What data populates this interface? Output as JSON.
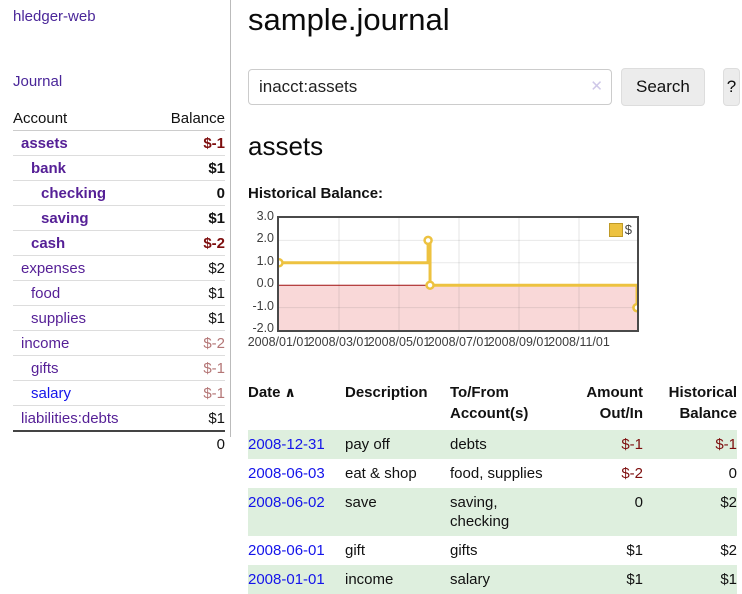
{
  "app": {
    "title": "hledger-web"
  },
  "sidebar": {
    "journal_link": "Journal",
    "header": {
      "account": "Account",
      "balance": "Balance"
    },
    "accounts": [
      {
        "name": "assets",
        "balance": "$-1",
        "indent": 0,
        "bold": true,
        "bal_style": "neg-strong"
      },
      {
        "name": "bank",
        "balance": "$1",
        "indent": 1,
        "bold": true,
        "bal_style": "pos"
      },
      {
        "name": "checking",
        "balance": "0",
        "indent": 2,
        "bold": true,
        "bal_style": "pos"
      },
      {
        "name": "saving",
        "balance": "$1",
        "indent": 2,
        "bold": true,
        "bal_style": "pos"
      },
      {
        "name": "cash",
        "balance": "$-2",
        "indent": 1,
        "bold": true,
        "bal_style": "neg-strong"
      },
      {
        "name": "expenses",
        "balance": "$2",
        "indent": 0,
        "bold": false,
        "bal_style": "pos"
      },
      {
        "name": "food",
        "balance": "$1",
        "indent": 1,
        "bold": false,
        "bal_style": "pos"
      },
      {
        "name": "supplies",
        "balance": "$1",
        "indent": 1,
        "bold": false,
        "bal_style": "pos"
      },
      {
        "name": "income",
        "balance": "$-2",
        "indent": 0,
        "bold": false,
        "bal_style": "neg-soft"
      },
      {
        "name": "gifts",
        "balance": "$-1",
        "indent": 1,
        "bold": false,
        "bal_style": "neg-soft"
      },
      {
        "name": "salary",
        "balance": "$-1",
        "indent": 1,
        "bold": false,
        "bal_style": "neg-soft",
        "link_color": "blue"
      },
      {
        "name": "liabilities:debts",
        "balance": "$1",
        "indent": 0,
        "bold": false,
        "bal_style": "pos"
      }
    ],
    "total": "0"
  },
  "main": {
    "title": "sample.journal",
    "search": {
      "value": "inacct:assets",
      "clear_icon": "✕",
      "button_label": "Search",
      "help_label": "?"
    },
    "account_heading": "assets",
    "chart_label": "Historical Balance:"
  },
  "chart_data": {
    "type": "line",
    "title": "Historical Balance:",
    "step": true,
    "series": [
      {
        "name": "$",
        "points": [
          [
            "2008-01-01",
            1
          ],
          [
            "2008-06-01",
            2
          ],
          [
            "2008-06-03",
            0
          ],
          [
            "2008-12-31",
            -1
          ]
        ]
      }
    ],
    "ylim": [
      -2,
      3
    ],
    "yticks": [
      "3.0",
      "2.0",
      "1.0",
      "0.0",
      "-1.0",
      "-2.0"
    ],
    "xticks": [
      "2008/01/01",
      "2008/03/01",
      "2008/05/01",
      "2008/07/01",
      "2008/09/01",
      "2008/11/01"
    ],
    "x_range_days": 365,
    "legend": "$",
    "legend_position": "top-right",
    "line_color": "#EDC240",
    "negative_region_color": "#f9d8d8",
    "zero_line_color": "#a01010",
    "grid": true
  },
  "register": {
    "headers": [
      {
        "label": "Date",
        "align": "l",
        "sorted": "asc"
      },
      {
        "label": "Description",
        "align": "l"
      },
      {
        "label": "To/From Account(s)",
        "align": "l"
      },
      {
        "label": "Amount Out/In",
        "align": "r"
      },
      {
        "label": "Historical Balance",
        "align": "r"
      }
    ],
    "sort_icon": "∧",
    "rows": [
      {
        "date": "2008-12-31",
        "description": "pay off",
        "accounts": "debts",
        "amount": "$-1",
        "balance": "$-1",
        "amount_neg": true,
        "balance_neg": true
      },
      {
        "date": "2008-06-03",
        "description": "eat & shop",
        "accounts": "food, supplies",
        "amount": "$-2",
        "balance": "0",
        "amount_neg": true,
        "balance_neg": false
      },
      {
        "date": "2008-06-02",
        "description": "save",
        "accounts": "saving, checking",
        "amount": "0",
        "balance": "$2",
        "amount_neg": false,
        "balance_neg": false
      },
      {
        "date": "2008-06-01",
        "description": "gift",
        "accounts": "gifts",
        "amount": "$1",
        "balance": "$2",
        "amount_neg": false,
        "balance_neg": false
      },
      {
        "date": "2008-01-01",
        "description": "income",
        "accounts": "salary",
        "amount": "$1",
        "balance": "$1",
        "amount_neg": false,
        "balance_neg": false
      }
    ]
  }
}
